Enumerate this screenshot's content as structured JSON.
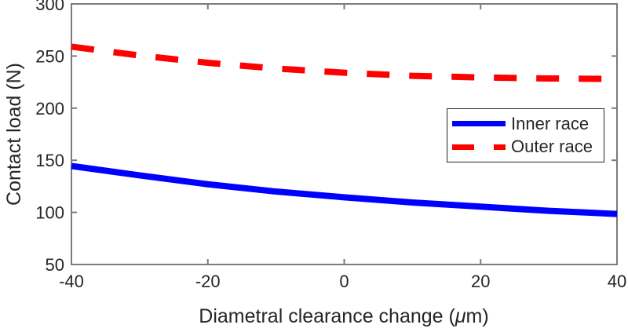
{
  "figure": {
    "background": "#ffffff",
    "axis_color": "#7b7b7b",
    "text_color": "#262626"
  },
  "labels": {
    "xlabel_pre": "Diametral clearance change (",
    "xlabel_mu": "μ",
    "xlabel_post": "m)"
  },
  "chart_data": {
    "type": "line",
    "title": "",
    "xlabel": "Diametral clearance change (μm)",
    "ylabel": "Contact load (N)",
    "xlim": [
      -40,
      40
    ],
    "ylim": [
      50,
      300
    ],
    "xticks": [
      -40,
      -20,
      0,
      20,
      40
    ],
    "yticks": [
      50,
      100,
      150,
      200,
      250,
      300
    ],
    "grid": false,
    "legend_position": "middle-right",
    "x": [
      -40,
      -30,
      -20,
      -10,
      0,
      10,
      20,
      30,
      40
    ],
    "series": [
      {
        "name": "Inner race",
        "color": "#0000ff",
        "style": "solid",
        "line_width": 8,
        "values": [
          144.5,
          135.5,
          127,
          120,
          114.5,
          109.5,
          105.5,
          101.5,
          98.5
        ]
      },
      {
        "name": "Outer race",
        "color": "#ff0000",
        "style": "dashed",
        "line_width": 8,
        "values": [
          259,
          250.5,
          243.5,
          238,
          234,
          231,
          229.5,
          228.5,
          228
        ]
      }
    ]
  }
}
